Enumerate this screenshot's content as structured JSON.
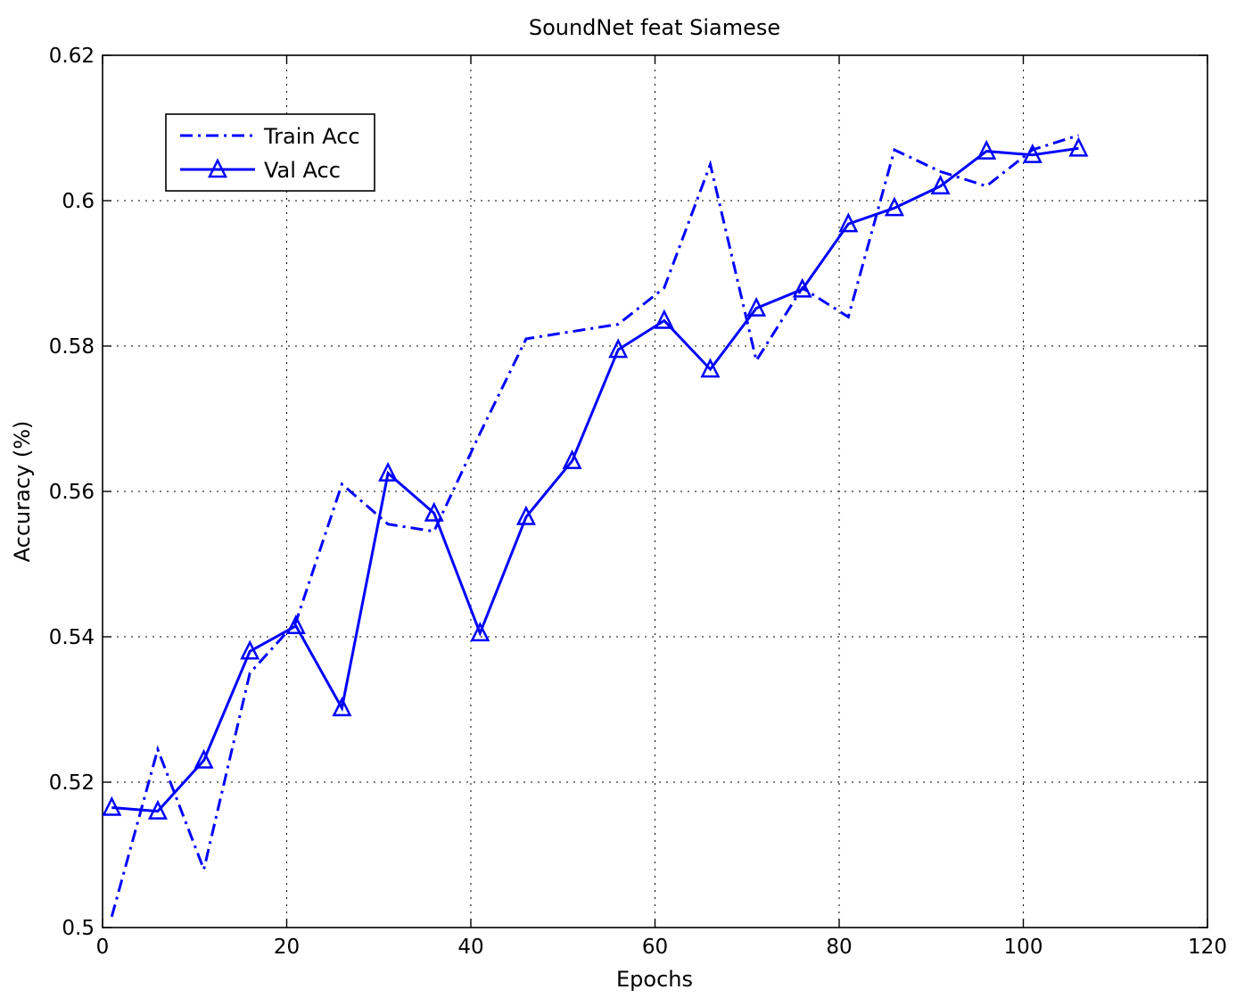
{
  "chart_data": {
    "type": "line",
    "title": "SoundNet feat Siamese",
    "xlabel": "Epochs",
    "ylabel": "Accuracy (%)",
    "xlim": [
      0,
      120
    ],
    "ylim": [
      0.5,
      0.62
    ],
    "xticks": [
      0,
      20,
      40,
      60,
      80,
      100,
      120
    ],
    "yticks": [
      0.5,
      0.52,
      0.54,
      0.56,
      0.58,
      0.6,
      0.62
    ],
    "xtick_labels": [
      "0",
      "20",
      "40",
      "60",
      "80",
      "100",
      "120"
    ],
    "ytick_labels": [
      "0.5",
      "0.52",
      "0.54",
      "0.56",
      "0.58",
      "0.6",
      "0.62"
    ],
    "grid": true,
    "legend_position": "top-left",
    "series": [
      {
        "name": "Train Acc",
        "style": "dash-dot",
        "marker": "none",
        "color": "#0000ff",
        "x": [
          1,
          6,
          11,
          16,
          21,
          26,
          31,
          36,
          41,
          46,
          51,
          56,
          61,
          66,
          71,
          76,
          81,
          86,
          91,
          96,
          101,
          106
        ],
        "values": [
          0.5015,
          0.5245,
          0.508,
          0.535,
          0.542,
          0.561,
          0.5555,
          0.5545,
          0.568,
          0.581,
          0.582,
          0.583,
          0.588,
          0.605,
          0.578,
          0.588,
          0.584,
          0.607,
          0.604,
          0.602,
          0.607,
          0.609
        ]
      },
      {
        "name": "Val Acc",
        "style": "solid",
        "marker": "triangle",
        "color": "#0000ff",
        "x": [
          1,
          6,
          11,
          16,
          21,
          26,
          31,
          36,
          41,
          46,
          51,
          56,
          61,
          66,
          71,
          76,
          81,
          86,
          91,
          96,
          101,
          106
        ],
        "values": [
          0.5165,
          0.516,
          0.523,
          0.538,
          0.5415,
          0.5302,
          0.5625,
          0.557,
          0.5405,
          0.5565,
          0.5642,
          0.5795,
          0.5835,
          0.5768,
          0.5852,
          0.5878,
          0.5968,
          0.599,
          0.602,
          0.6068,
          0.6063,
          0.6072
        ]
      }
    ]
  }
}
